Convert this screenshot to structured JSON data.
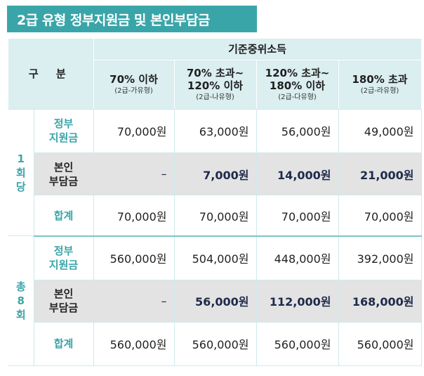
{
  "title": "2급 유형 정부지원금 및 본인부담금",
  "header": {
    "gubun": "구 분",
    "income_group": "기준중위소득",
    "columns": [
      {
        "main": "70% 이하",
        "sub": "(2급-가유형)"
      },
      {
        "main": "70% 초과~\n120% 이하",
        "sub": "(2급-나유형)"
      },
      {
        "main": "120% 초과~\n180% 이하",
        "sub": "(2급-다유형)"
      },
      {
        "main": "180% 초과",
        "sub": "(2급-라유형)"
      }
    ]
  },
  "groups": [
    {
      "label": "1\n회\n당",
      "rows": [
        {
          "label": "정부\n지원금",
          "values": [
            "70,000원",
            "63,000원",
            "56,000원",
            "49,000원"
          ]
        },
        {
          "label": "본인\n부담금",
          "values": [
            "–",
            "7,000원",
            "14,000원",
            "21,000원"
          ]
        },
        {
          "label": "합계",
          "values": [
            "70,000원",
            "70,000원",
            "70,000원",
            "70,000원"
          ]
        }
      ]
    },
    {
      "label": "총\n8\n회",
      "rows": [
        {
          "label": "정부\n지원금",
          "values": [
            "560,000원",
            "504,000원",
            "448,000원",
            "392,000원"
          ]
        },
        {
          "label": "본인\n부담금",
          "values": [
            "–",
            "56,000원",
            "112,000원",
            "168,000원"
          ]
        },
        {
          "label": "합계",
          "values": [
            "560,000원",
            "560,000원",
            "560,000원",
            "560,000원"
          ]
        }
      ]
    }
  ]
}
